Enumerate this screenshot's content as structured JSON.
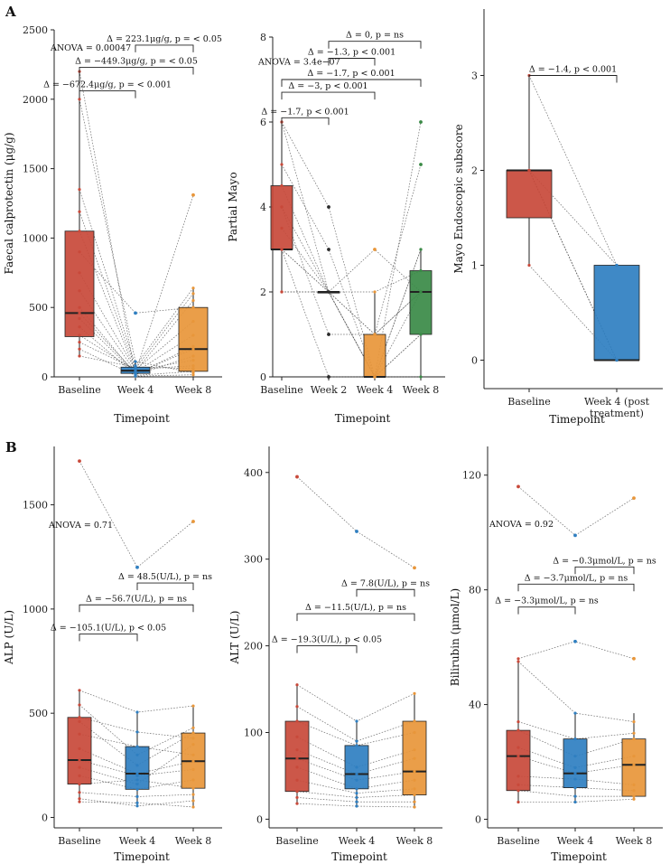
{
  "panels": {
    "A": "A",
    "B": "B"
  },
  "colors": {
    "red": "#c8493a",
    "blue": "#2f7fc1",
    "orange": "#e8963a",
    "green": "#3a8a46",
    "point": "#2a2a2a",
    "line": "#555555"
  },
  "chart_data": [
    {
      "id": "fcp",
      "type": "box",
      "panel": "A",
      "xlabel": "Timepoint",
      "ylabel": "Faecal calprotectin (μg/g)",
      "categories": [
        "Baseline",
        "Week 4",
        "Week 8"
      ],
      "category_colors": [
        "red",
        "blue",
        "orange"
      ],
      "ylim": [
        0,
        2500
      ],
      "yticks": [
        0,
        500,
        1000,
        1500,
        2000,
        2500
      ],
      "boxes": [
        {
          "min": 150,
          "q1": 290,
          "median": 460,
          "q3": 1050,
          "max": 2200
        },
        {
          "min": 5,
          "q1": 25,
          "median": 45,
          "q3": 70,
          "max": 110
        },
        {
          "min": 20,
          "q1": 40,
          "median": 200,
          "q3": 500,
          "max": 640
        }
      ],
      "outliers": [
        {
          "cat": 1,
          "y": 460
        },
        {
          "cat": 2,
          "y": 1310
        }
      ],
      "points": [
        [
          2200,
          5,
          15
        ],
        [
          2000,
          110,
          30
        ],
        [
          1350,
          80,
          640
        ],
        [
          1190,
          60,
          600
        ],
        [
          1050,
          40,
          550
        ],
        [
          900,
          460,
          500
        ],
        [
          750,
          50,
          400
        ],
        [
          620,
          35,
          300
        ],
        [
          500,
          20,
          220
        ],
        [
          460,
          30,
          1310
        ],
        [
          420,
          25,
          200
        ],
        [
          360,
          15,
          150
        ],
        [
          300,
          45,
          120
        ],
        [
          250,
          55,
          80
        ],
        [
          200,
          10,
          40
        ],
        [
          150,
          70,
          60
        ]
      ],
      "annotation": "ANOVA = 0.00047",
      "brackets": [
        {
          "from": 0,
          "to": 1,
          "y": 2060,
          "label": "Δ = −672.4μg/g, p = < 0.001"
        },
        {
          "from": 0,
          "to": 2,
          "y": 2230,
          "label": "Δ = −449.3μg/g, p = < 0.05"
        },
        {
          "from": 1,
          "to": 2,
          "y": 2390,
          "label": "Δ = 223.1μg/g, p = < 0.05"
        }
      ]
    },
    {
      "id": "mayo",
      "type": "box",
      "panel": "A",
      "xlabel": "Timepoint",
      "ylabel": "Partial Mayo",
      "categories": [
        "Baseline",
        "Week 2",
        "Week 4",
        "Week 8"
      ],
      "category_colors": [
        "red",
        "point",
        "orange",
        "green"
      ],
      "ylim": [
        0,
        8
      ],
      "yticks": [
        0,
        2,
        4,
        6,
        8
      ],
      "boxes": [
        {
          "min": 2,
          "q1": 3,
          "median": 3,
          "q3": 4.5,
          "max": 6
        },
        {
          "min": 2,
          "q1": 2,
          "median": 2,
          "q3": 2,
          "max": 2
        },
        {
          "min": 0,
          "q1": 0,
          "median": 0,
          "q3": 1,
          "max": 2
        },
        {
          "min": 0,
          "q1": 1,
          "median": 2,
          "q3": 2.5,
          "max": 3
        }
      ],
      "outliers": [
        {
          "cat": 1,
          "y": 4
        },
        {
          "cat": 1,
          "y": 3
        },
        {
          "cat": 1,
          "y": 1
        },
        {
          "cat": 1,
          "y": 0
        },
        {
          "cat": 2,
          "y": 3
        },
        {
          "cat": 3,
          "y": 6
        },
        {
          "cat": 3,
          "y": 5
        }
      ],
      "points": [
        [
          6,
          4,
          0,
          6
        ],
        [
          6,
          2,
          1,
          5
        ],
        [
          5,
          3,
          0,
          3
        ],
        [
          4.5,
          2,
          2,
          2.5
        ],
        [
          4,
          2,
          0,
          2
        ],
        [
          4,
          1,
          1,
          2
        ],
        [
          3.5,
          2,
          0,
          1
        ],
        [
          3,
          0,
          0,
          0
        ],
        [
          3,
          2,
          3,
          2
        ],
        [
          3,
          2,
          1,
          2
        ],
        [
          2,
          2,
          0,
          1
        ],
        [
          2,
          2,
          0,
          3
        ]
      ],
      "annotation": "ANOVA = 3.4e−07",
      "brackets": [
        {
          "from": 0,
          "to": 1,
          "y": 6.1,
          "label": "Δ = −1.7, p < 0.001"
        },
        {
          "from": 0,
          "to": 2,
          "y": 6.7,
          "label": "Δ = −3, p < 0.001"
        },
        {
          "from": 0,
          "to": 3,
          "y": 7.0,
          "label": "Δ = −1.7, p < 0.001"
        },
        {
          "from": 1,
          "to": 2,
          "y": 7.5,
          "label": "Δ = −1.3, p < 0.001"
        },
        {
          "from": 1,
          "to": 3,
          "y": 7.9,
          "label": "Δ = 0, p = ns"
        }
      ]
    },
    {
      "id": "endo",
      "type": "box",
      "panel": "A",
      "xlabel": "Timepoint",
      "ylabel": "Mayo Endoscopic subscore",
      "categories": [
        "Baseline",
        "Week 4 (post\ntreatment)"
      ],
      "category_colors": [
        "red",
        "blue"
      ],
      "ylim": [
        -0.3,
        3.7
      ],
      "yticks": [
        0,
        1,
        2,
        3
      ],
      "boxes": [
        {
          "min": 1,
          "q1": 1.5,
          "median": 2,
          "q3": 2,
          "max": 3
        },
        {
          "min": 0,
          "q1": 0,
          "median": 0,
          "q3": 1,
          "max": 1
        }
      ],
      "outliers": [],
      "points": [
        [
          3,
          1
        ],
        [
          2,
          0
        ],
        [
          2,
          1
        ],
        [
          2,
          0
        ],
        [
          1,
          0
        ],
        [
          2,
          0
        ]
      ],
      "annotation": "",
      "brackets": [
        {
          "from": 0,
          "to": 1,
          "y": 3.0,
          "label": "Δ = −1.4, p < 0.001"
        }
      ]
    },
    {
      "id": "alp",
      "type": "box",
      "panel": "B",
      "xlabel": "Timepoint",
      "ylabel": "ALP (U/L)",
      "categories": [
        "Baseline",
        "Week 4",
        "Week 8"
      ],
      "category_colors": [
        "red",
        "blue",
        "orange"
      ],
      "ylim": [
        -50,
        1780
      ],
      "yticks": [
        0,
        500,
        1000,
        1500
      ],
      "boxes": [
        {
          "min": 75,
          "q1": 160,
          "median": 275,
          "q3": 480,
          "max": 610
        },
        {
          "min": 55,
          "q1": 135,
          "median": 210,
          "q3": 340,
          "max": 505
        },
        {
          "min": 50,
          "q1": 140,
          "median": 270,
          "q3": 405,
          "max": 535
        }
      ],
      "outliers": [
        {
          "cat": 1,
          "y": 1200
        },
        {
          "cat": 0,
          "y": 1710
        },
        {
          "cat": 2,
          "y": 1420
        }
      ],
      "points": [
        [
          1710,
          1200,
          1420
        ],
        [
          610,
          505,
          535
        ],
        [
          540,
          300,
          430
        ],
        [
          480,
          410,
          380
        ],
        [
          460,
          250,
          405
        ],
        [
          400,
          340,
          300
        ],
        [
          330,
          210,
          270
        ],
        [
          275,
          200,
          230
        ],
        [
          240,
          160,
          350
        ],
        [
          200,
          135,
          180
        ],
        [
          160,
          180,
          140
        ],
        [
          120,
          100,
          110
        ],
        [
          90,
          55,
          80
        ],
        [
          75,
          70,
          50
        ]
      ],
      "annotation": "ANOVA = 0.71",
      "brackets": [
        {
          "from": 0,
          "to": 1,
          "y": 880,
          "label": "Δ = −105.1(U/L), p < 0.05"
        },
        {
          "from": 0,
          "to": 2,
          "y": 1020,
          "label": "Δ = −56.7(U/L), p = ns"
        },
        {
          "from": 1,
          "to": 2,
          "y": 1125,
          "label": "Δ = 48.5(U/L), p = ns"
        }
      ]
    },
    {
      "id": "alt",
      "type": "box",
      "panel": "B",
      "xlabel": "Timepoint",
      "ylabel": "ALT (U/L)",
      "categories": [
        "Baseline",
        "Week 4",
        "Week 8"
      ],
      "category_colors": [
        "red",
        "blue",
        "orange"
      ],
      "ylim": [
        -10,
        430
      ],
      "yticks": [
        0,
        100,
        200,
        300,
        400
      ],
      "boxes": [
        {
          "min": 18,
          "q1": 32,
          "median": 70,
          "q3": 113,
          "max": 155
        },
        {
          "min": 15,
          "q1": 35,
          "median": 52,
          "q3": 85,
          "max": 113
        },
        {
          "min": 14,
          "q1": 28,
          "median": 55,
          "q3": 113,
          "max": 145
        }
      ],
      "outliers": [
        {
          "cat": 0,
          "y": 395
        },
        {
          "cat": 1,
          "y": 332
        },
        {
          "cat": 2,
          "y": 290
        }
      ],
      "points": [
        [
          395,
          332,
          290
        ],
        [
          155,
          113,
          145
        ],
        [
          130,
          90,
          113
        ],
        [
          113,
          85,
          100
        ],
        [
          95,
          60,
          80
        ],
        [
          80,
          52,
          70
        ],
        [
          70,
          45,
          55
        ],
        [
          60,
          35,
          45
        ],
        [
          45,
          30,
          35
        ],
        [
          32,
          25,
          28
        ],
        [
          25,
          20,
          20
        ],
        [
          18,
          15,
          14
        ]
      ],
      "annotation": "",
      "brackets": [
        {
          "from": 0,
          "to": 1,
          "y": 200,
          "label": "Δ = −19.3(U/L), p < 0.05"
        },
        {
          "from": 0,
          "to": 2,
          "y": 237,
          "label": "Δ = −11.5(U/L), p = ns"
        },
        {
          "from": 1,
          "to": 2,
          "y": 265,
          "label": "Δ = 7.8(U/L), p = ns"
        }
      ]
    },
    {
      "id": "bili",
      "type": "box",
      "panel": "B",
      "xlabel": "Timepoint",
      "ylabel": "Bilirubin (μmol/L)",
      "categories": [
        "Baseline",
        "Week 4",
        "Week 8"
      ],
      "category_colors": [
        "red",
        "blue",
        "orange"
      ],
      "ylim": [
        -3,
        130
      ],
      "yticks": [
        0,
        40,
        80,
        120
      ],
      "boxes": [
        {
          "min": 6,
          "q1": 10,
          "median": 22,
          "q3": 31,
          "max": 55
        },
        {
          "min": 6,
          "q1": 11,
          "median": 16,
          "q3": 28,
          "max": 37
        },
        {
          "min": 7,
          "q1": 8,
          "median": 19,
          "q3": 28,
          "max": 37
        }
      ],
      "outliers": [
        {
          "cat": 0,
          "y": 116
        },
        {
          "cat": 1,
          "y": 99
        },
        {
          "cat": 2,
          "y": 112
        },
        {
          "cat": 1,
          "y": 62
        },
        {
          "cat": 2,
          "y": 56
        }
      ],
      "points": [
        [
          116,
          99,
          112
        ],
        [
          56,
          62,
          56
        ],
        [
          55,
          37,
          34
        ],
        [
          34,
          28,
          30
        ],
        [
          31,
          22,
          28
        ],
        [
          25,
          18,
          22
        ],
        [
          22,
          16,
          19
        ],
        [
          15,
          14,
          12
        ],
        [
          12,
          11,
          10
        ],
        [
          10,
          8,
          8
        ],
        [
          6,
          6,
          7
        ]
      ],
      "annotation": "ANOVA = 0.92",
      "brackets": [
        {
          "from": 0,
          "to": 1,
          "y": 74,
          "label": "Δ = −3.3μmol/L, p = ns"
        },
        {
          "from": 0,
          "to": 2,
          "y": 82,
          "label": "Δ = −3.7μmol/L, p = ns"
        },
        {
          "from": 1,
          "to": 2,
          "y": 88,
          "label": "Δ = −0.3μmol/L, p = ns"
        }
      ]
    }
  ]
}
